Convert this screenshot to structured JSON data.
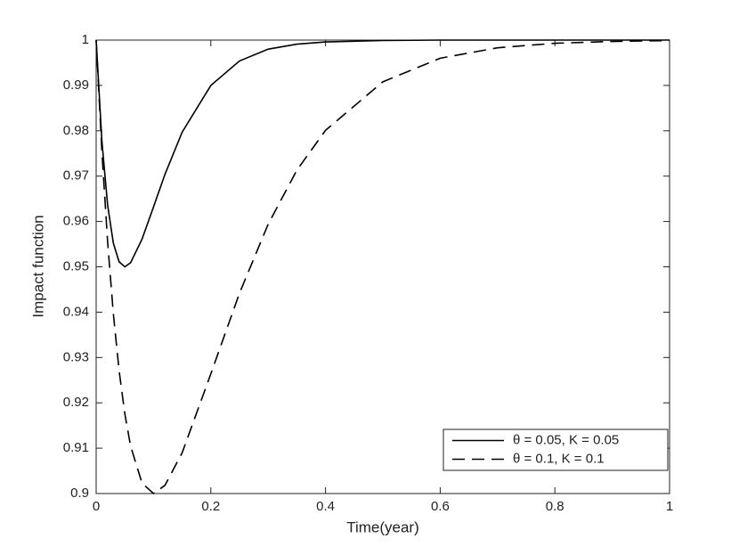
{
  "chart_data": {
    "type": "line",
    "x_label": "Time(year)",
    "y_label": "Impact function",
    "x": [
      0,
      0.01,
      0.02,
      0.03,
      0.04,
      0.05,
      0.06,
      0.08,
      0.1,
      0.12,
      0.15,
      0.2,
      0.25,
      0.3,
      0.35,
      0.4,
      0.5,
      0.6,
      0.7,
      0.8,
      0.9,
      1.0
    ],
    "series": [
      {
        "name": "θ = 0.05, K = 0.05",
        "color": "#000000",
        "dash": "solid",
        "values": [
          1,
          0.9777,
          0.9636,
          0.9552,
          0.9511,
          0.95,
          0.9509,
          0.9561,
          0.9632,
          0.9704,
          0.9797,
          0.99,
          0.9954,
          0.998,
          0.9991,
          0.9996,
          0.9999,
          1,
          1,
          1,
          1,
          1
        ]
      },
      {
        "name": "θ = 0.1, K = 0.1",
        "color": "#000000",
        "dash": "dashed",
        "values": [
          1,
          0.9754,
          0.9555,
          0.9396,
          0.9271,
          0.9176,
          0.9105,
          0.9023,
          0.9,
          0.9018,
          0.909,
          0.9264,
          0.9442,
          0.9594,
          0.9713,
          0.9801,
          0.9908,
          0.996,
          0.9983,
          0.9993,
          0.9997,
          0.9999
        ]
      }
    ],
    "xlim": [
      0,
      1
    ],
    "xticks": [
      0,
      0.2,
      0.4,
      0.6,
      0.8,
      1
    ],
    "ylim": [
      0.9,
      1
    ],
    "yticks": [
      0.9,
      0.91,
      0.92,
      0.93,
      0.94,
      0.95,
      0.96,
      0.97,
      0.98,
      0.99,
      1
    ],
    "grid": false,
    "legend": "lower right"
  }
}
